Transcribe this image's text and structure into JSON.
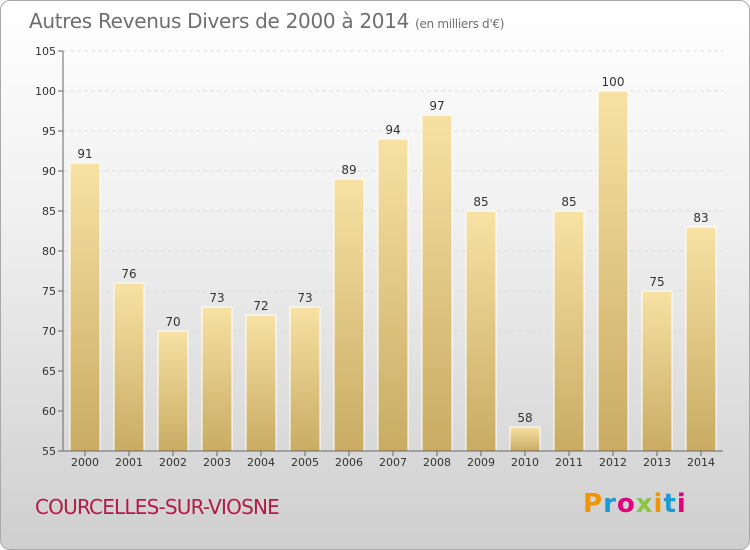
{
  "title": "Autres Revenus Divers de 2000 à 2014",
  "unit_note": "(en milliers d'€)",
  "city": "COURCELLES-SUR-VIOSNE",
  "logo": [
    "P",
    "r",
    "o",
    "x",
    "i",
    "t",
    "i"
  ],
  "logo_colors": [
    "#f29400",
    "#1b9ad6",
    "#e4007c",
    "#8cc63f",
    "#f29400",
    "#1b9ad6",
    "#e4007c"
  ],
  "colors": {
    "bar_light": "#f7e2a4",
    "bar_dark": "#c9ab63",
    "city": "#b01c4a"
  },
  "chart_data": {
    "type": "bar",
    "title": "Autres Revenus Divers de 2000 à 2014",
    "categories": [
      "2000",
      "2001",
      "2002",
      "2003",
      "2004",
      "2005",
      "2006",
      "2007",
      "2008",
      "2009",
      "2010",
      "2011",
      "2012",
      "2013",
      "2014"
    ],
    "values": [
      91,
      76,
      70,
      73,
      72,
      73,
      89,
      94,
      97,
      85,
      58,
      85,
      100,
      75,
      83
    ],
    "ylim": [
      55,
      105
    ],
    "yticks": [
      55,
      60,
      65,
      70,
      75,
      80,
      85,
      90,
      95,
      100,
      105
    ],
    "grid": true
  }
}
